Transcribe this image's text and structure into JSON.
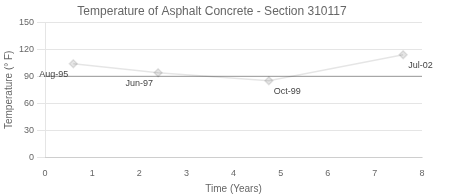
{
  "chart_data": {
    "type": "line",
    "title": "Temperature of Asphalt Concrete - Section 310117",
    "x_label": "Time (Years)",
    "y_label": "Temperature (° F)",
    "x": [
      0.6,
      2.4,
      4.75,
      7.6
    ],
    "values": [
      104,
      94,
      85,
      114
    ],
    "marker": "diamond",
    "xlim": [
      0,
      8
    ],
    "xticks": [
      0,
      1,
      2,
      3,
      4,
      5,
      6,
      7,
      8
    ],
    "ylim": [
      0,
      150
    ],
    "yticks": [
      0,
      30,
      60,
      90,
      120,
      150
    ],
    "grid": true,
    "avg_line": {
      "y": 90,
      "color": "#999999"
    },
    "annotations": [
      {
        "text": "Aug-95",
        "x": 0.6,
        "y": 104
      },
      {
        "text": "Jun-97",
        "x": 2.4,
        "y": 94
      },
      {
        "text": "Oct-99",
        "x": 4.75,
        "y": 85
      },
      {
        "text": "Jul-02",
        "x": 7.6,
        "y": 114
      }
    ]
  }
}
